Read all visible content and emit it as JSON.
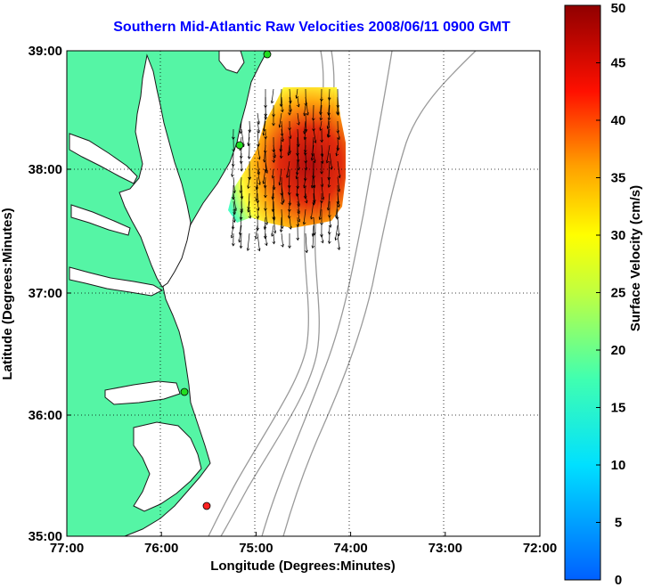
{
  "title": "Southern Mid-Atlantic Raw Velocities 2008/06/11 0900 GMT",
  "map": {
    "xlabel": "Longitude (Degrees:Minutes)",
    "ylabel": "Latitude (Degrees:Minutes)",
    "x_ticks": [
      "77:00",
      "76:00",
      "75:00",
      "74:00",
      "73:00",
      "72:00"
    ],
    "y_ticks": [
      "39:00",
      "38:00",
      "37:00",
      "36:00",
      "35:00"
    ],
    "colors": {
      "land": "#55f5a5",
      "coast": "#1a1a1a",
      "bathymetry": "#9a9a9a",
      "station": "#22dd22",
      "station_active": "#ff2222"
    }
  },
  "colorbar": {
    "label": "Surface Velocity (cm/s)",
    "ticks": [
      "0",
      "5",
      "10",
      "15",
      "20",
      "25",
      "30",
      "35",
      "40",
      "45",
      "50"
    ],
    "min": 0,
    "max": 50,
    "colormap": "jet"
  }
}
